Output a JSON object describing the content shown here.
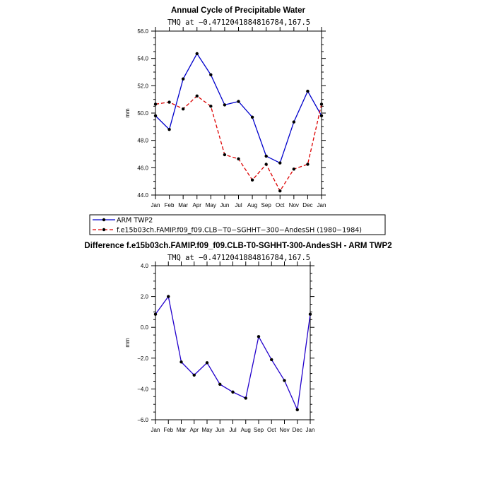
{
  "chart_data": [
    {
      "type": "line",
      "title": "Annual Cycle of Precipitable Water",
      "subtitle": "TMQ at −0.4712041884816784,167.5",
      "xlabel": "",
      "ylabel": "mm",
      "categories": [
        "Jan",
        "Feb",
        "Mar",
        "Apr",
        "May",
        "Jun",
        "Jul",
        "Aug",
        "Sep",
        "Oct",
        "Nov",
        "Dec",
        "Jan"
      ],
      "ylim": [
        44.0,
        56.0
      ],
      "yticks": [
        44.0,
        46.0,
        48.0,
        50.0,
        52.0,
        54.0,
        56.0
      ],
      "ytick_labels": [
        "44.0",
        "46.0",
        "48.0",
        "50.0",
        "52.0",
        "54.0",
        "56.0"
      ],
      "series": [
        {
          "name": "ARM TWP2",
          "color": "#0000cc",
          "dash": "solid",
          "values": [
            49.8,
            48.8,
            52.5,
            54.35,
            52.8,
            50.6,
            50.85,
            49.7,
            46.85,
            46.35,
            49.35,
            51.6,
            49.8
          ]
        },
        {
          "name": "f.e15b03ch.FAMIP.f09_f09.CLB−T0−SGHHT−300−AndesSH (1980−1984)",
          "color": "#dd0000",
          "dash": "dashed",
          "values": [
            50.65,
            50.8,
            50.3,
            51.25,
            50.5,
            46.95,
            46.65,
            45.1,
            46.25,
            44.3,
            45.9,
            46.25,
            50.65
          ]
        }
      ],
      "legend": {
        "position": "below-plot",
        "entries": [
          "ARM TWP2",
          "f.e15b03ch.FAMIP.f09_f09.CLB−T0−SGHHT−300−AndesSH (1980−1984)"
        ]
      }
    },
    {
      "type": "line",
      "title": "Difference f.e15b03ch.FAMIP.f09_f09.CLB-T0-SGHHT-300-AndesSH - ARM TWP2",
      "subtitle": "TMQ at −0.4712041884816784,167.5",
      "xlabel": "",
      "ylabel": "mm",
      "categories": [
        "Jan",
        "Feb",
        "Mar",
        "Apr",
        "May",
        "Jun",
        "Jul",
        "Aug",
        "Sep",
        "Oct",
        "Nov",
        "Dec",
        "Jan"
      ],
      "ylim": [
        -6.0,
        4.0
      ],
      "yticks": [
        -6.0,
        -4.0,
        -2.0,
        0.0,
        2.0,
        4.0
      ],
      "ytick_labels": [
        "−6.0",
        "−4.0",
        "−2.0",
        "0.0",
        "2.0",
        "4.0"
      ],
      "series": [
        {
          "name": "Difference",
          "color": "#2200cc",
          "dash": "solid",
          "values": [
            0.85,
            2.0,
            -2.25,
            -3.1,
            -2.3,
            -3.7,
            -4.2,
            -4.6,
            -0.6,
            -2.1,
            -3.45,
            -5.35,
            0.85
          ]
        }
      ]
    }
  ]
}
